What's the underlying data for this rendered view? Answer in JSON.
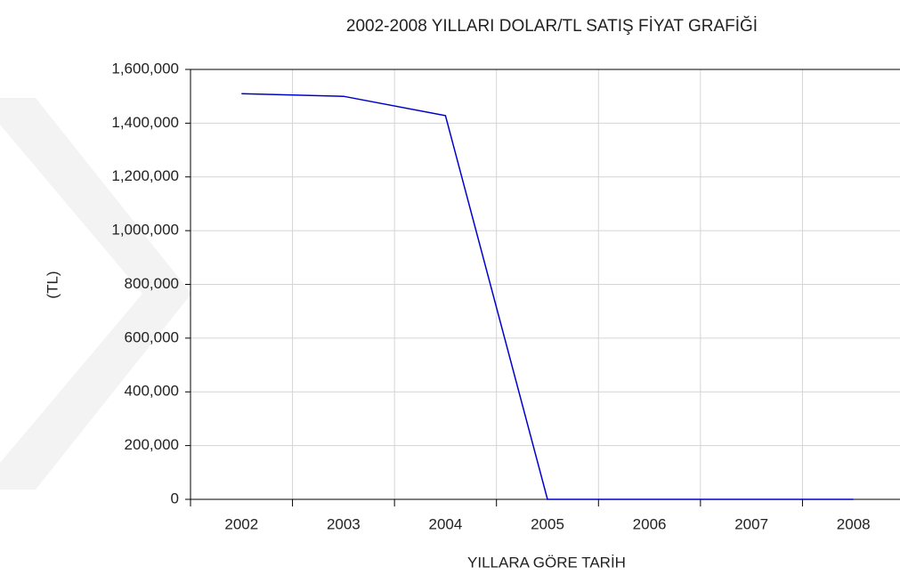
{
  "chart_data": {
    "type": "line",
    "title": "2002-2008 YILLARI DOLAR/TL SATIŞ FİYAT GRAFİĞİ",
    "x_label": "YILLARA GÖRE TARİH",
    "y_label": "(TL)",
    "categories": [
      "2002",
      "2003",
      "2004",
      "2005",
      "2006",
      "2007",
      "2008"
    ],
    "series": [
      {
        "name": "DOLAR/TL",
        "color": "#0000cc",
        "values": [
          1510000,
          1500000,
          1428000,
          1.34,
          1.43,
          1.3,
          1.3
        ]
      }
    ],
    "ylim": [
      0,
      1600000
    ],
    "yticks": [
      0,
      {
        "value": 200000,
        "label": "200,000"
      },
      {
        "value": 400000,
        "label": "400,000"
      },
      {
        "value": 600000,
        "label": "600,000"
      },
      {
        "value": 800000,
        "label": "800,000"
      },
      {
        "value": 1000000,
        "label": "1,000,000"
      },
      {
        "value": 1200000,
        "label": "1,200,000"
      },
      {
        "value": 1400000,
        "label": "1,400,000"
      },
      {
        "value": 1600000,
        "label": "1,600,000"
      }
    ],
    "grid": true
  }
}
